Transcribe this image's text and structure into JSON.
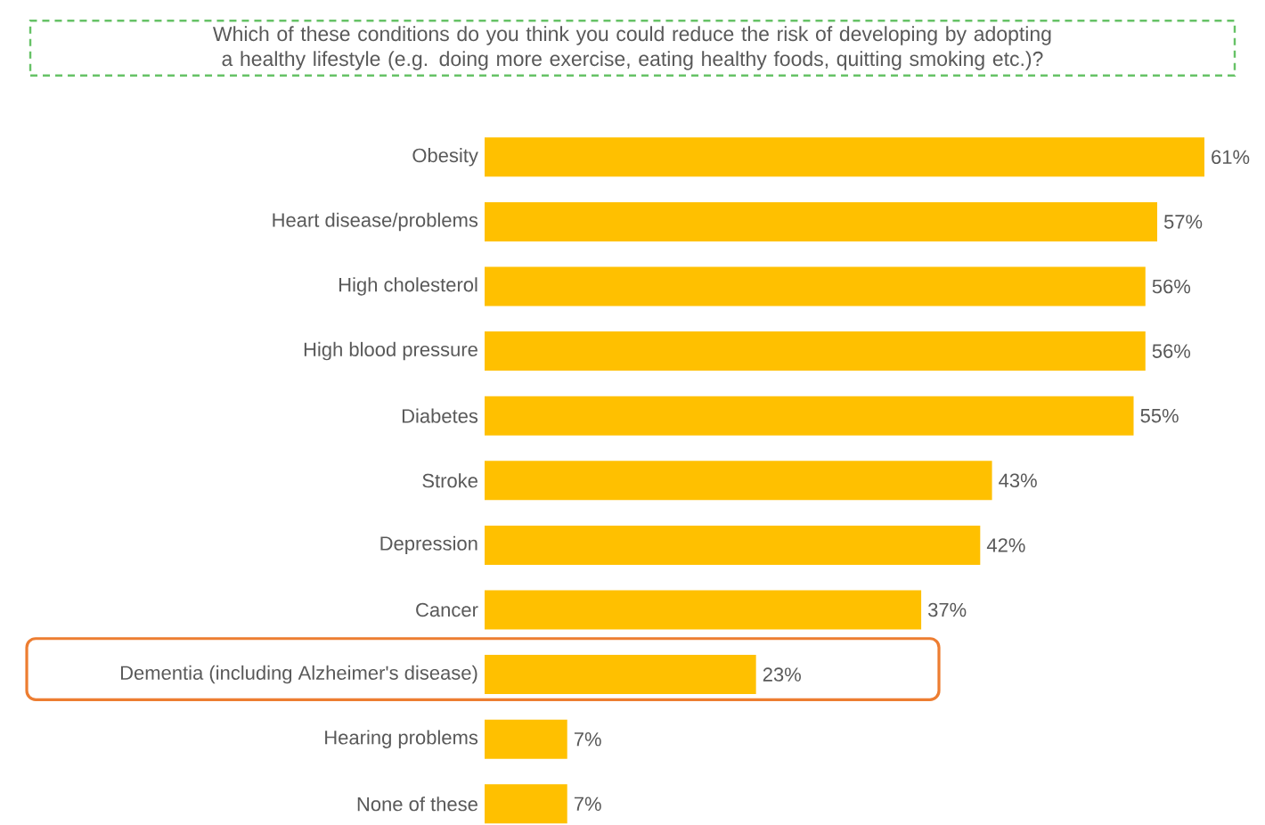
{
  "chart_data": {
    "type": "bar",
    "orientation": "horizontal",
    "title": "Which of these conditions do you think you could reduce the risk of developing by adopting a healthy lifestyle (e.g. doing more exercise, eating healthy foods, quitting smoking etc.)?",
    "categories": [
      "Obesity",
      "Heart disease/problems",
      "High cholesterol",
      "High blood pressure",
      "Diabetes",
      "Stroke",
      "Depression",
      "Cancer",
      "Dementia (including Alzheimer's disease)",
      "Hearing problems",
      "None of these"
    ],
    "values": [
      61,
      57,
      56,
      56,
      55,
      43,
      42,
      37,
      23,
      7,
      7
    ],
    "value_labels": [
      "61%",
      "57%",
      "56%",
      "56%",
      "55%",
      "43%",
      "42%",
      "37%",
      "23%",
      "7%",
      "7%"
    ],
    "color": "#ffc000"
  }
}
